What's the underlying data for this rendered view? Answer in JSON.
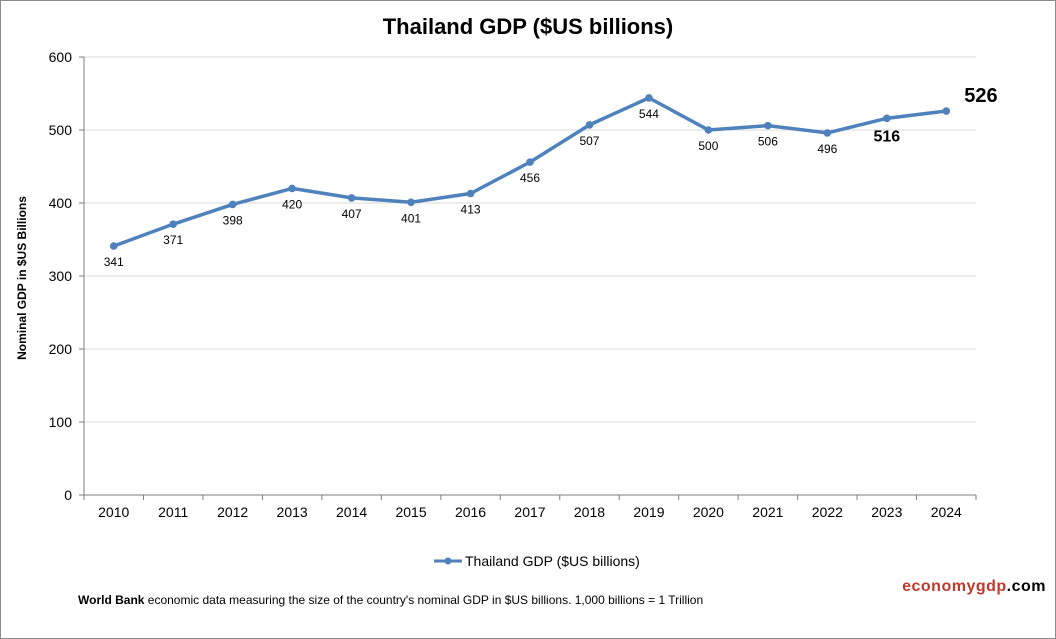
{
  "chart_data": {
    "type": "line",
    "title": "Thailand GDP ($US billions)",
    "xlabel": "",
    "ylabel": "Nominal GDP in $US  Billions",
    "ylim": [
      0,
      600
    ],
    "yticks": [
      0,
      100,
      200,
      300,
      400,
      500,
      600
    ],
    "categories": [
      "2010",
      "2011",
      "2012",
      "2013",
      "2014",
      "2015",
      "2016",
      "2017",
      "2018",
      "2019",
      "2020",
      "2021",
      "2022",
      "2023",
      "2024"
    ],
    "series": [
      {
        "name": "Thailand GDP ($US billions)",
        "color": "#4f81bd",
        "values": [
          341,
          371,
          398,
          420,
          407,
          401,
          413,
          456,
          507,
          544,
          500,
          506,
          496,
          516,
          526
        ]
      }
    ],
    "legend": "bottom",
    "grid": true
  },
  "footnote": {
    "source_bold": "World Bank",
    "text": " economic data  measuring the size of the country's nominal GDP in $US billions. 1,000 billions = 1 Trillion"
  },
  "brand": {
    "part1": "economygdp",
    "part2": ".com"
  }
}
